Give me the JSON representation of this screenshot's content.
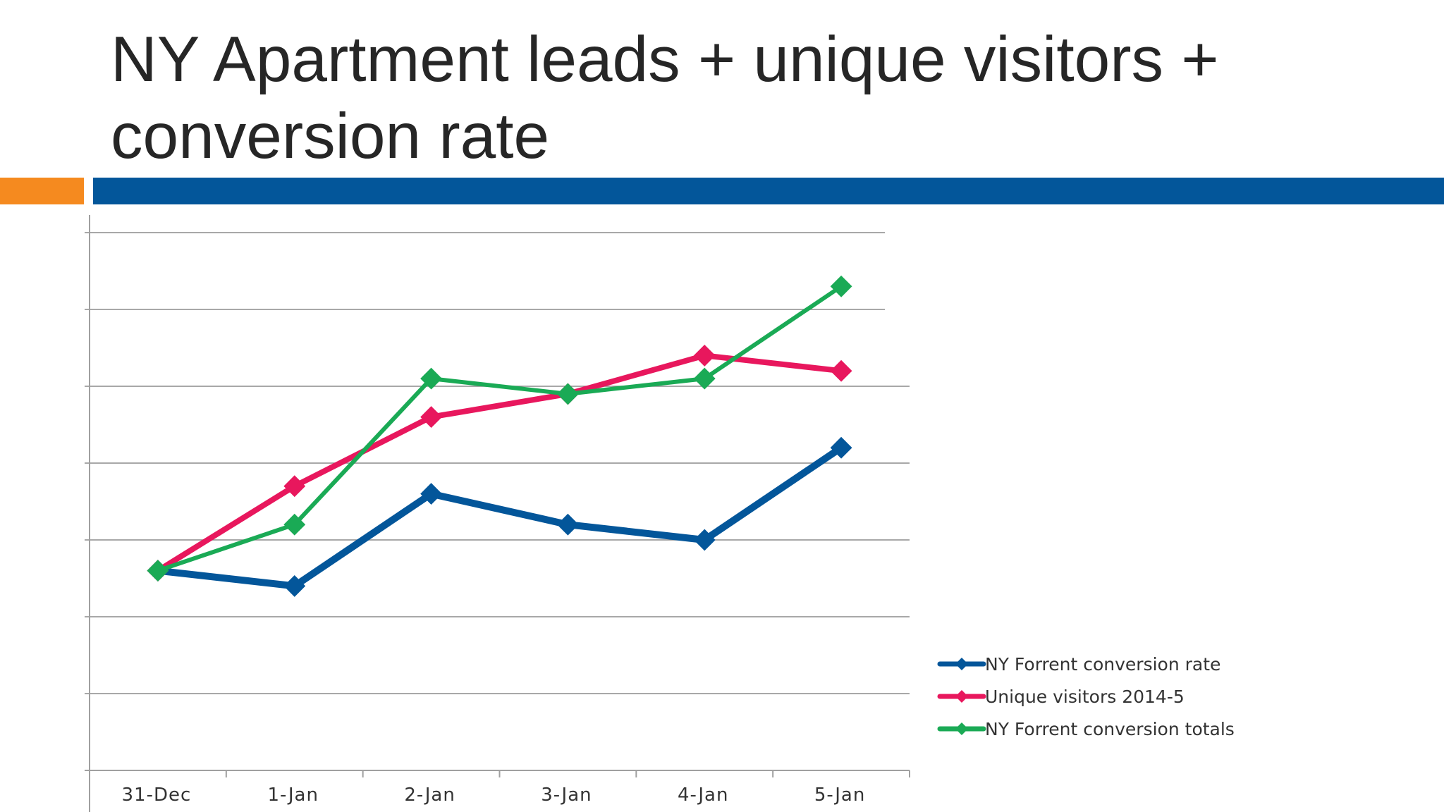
{
  "slide": {
    "title": "NY Apartment leads + unique visitors + conversion rate"
  },
  "colors": {
    "accent_orange": "#f58a1f",
    "accent_blue": "#03569a",
    "gridline": "#8c8c8c",
    "text": "#262626"
  },
  "chart_data": {
    "type": "line",
    "title": "",
    "xlabel": "",
    "ylabel": "",
    "ylim": [
      0,
      7
    ],
    "grid": true,
    "y_tick_labels_shown": false,
    "legend_position": "right",
    "categories": [
      "31-Dec",
      "1-Jan",
      "2-Jan",
      "3-Jan",
      "4-Jan",
      "5-Jan"
    ],
    "series": [
      {
        "name": "NY Forrent conversion rate",
        "color": "#03569a",
        "values": [
          2.6,
          2.4,
          3.6,
          3.2,
          3.0,
          4.2
        ]
      },
      {
        "name": "Unique visitors 2014-5",
        "color": "#e8175d",
        "values": [
          2.6,
          3.7,
          4.6,
          4.9,
          5.4,
          5.2
        ]
      },
      {
        "name": "NY Forrent conversion totals",
        "color": "#1aaa55",
        "values": [
          2.6,
          3.2,
          5.1,
          4.9,
          5.1,
          6.3
        ]
      }
    ]
  }
}
